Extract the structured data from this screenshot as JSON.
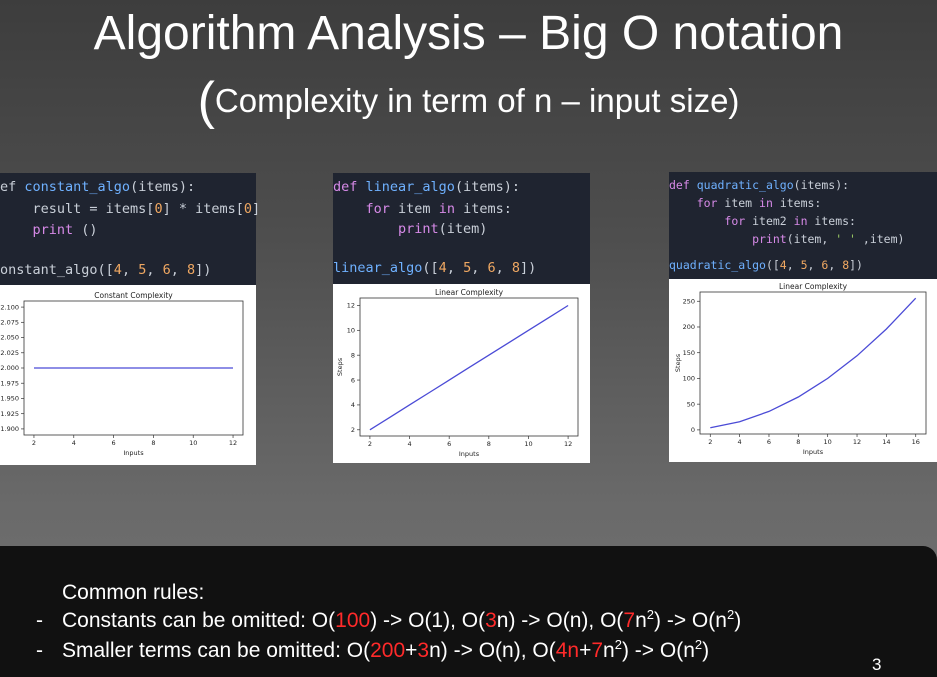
{
  "slide": {
    "title": "Algorithm Analysis – Big O notation",
    "subtitle_open": "(",
    "subtitle": "Complexity in term of n – input size)",
    "page_number": "3"
  },
  "code_blocks": [
    {
      "name": "constant",
      "lines": [
        "ef constant_algo(items):",
        "    result = items[0] * items[0]",
        "    print ()",
        "",
        "onstant_algo([4, 5, 6, 8])"
      ]
    },
    {
      "name": "linear",
      "lines": [
        "def linear_algo(items):",
        "    for item in items:",
        "        print(item)",
        "",
        "linear_algo([4, 5, 6, 8])"
      ]
    },
    {
      "name": "quadratic",
      "lines": [
        "def quadratic_algo(items):",
        "    for item in items:",
        "        for item2 in items:",
        "            print(item, ' ' ,item)",
        "",
        "quadratic_algo([4, 5, 6, 8])"
      ]
    }
  ],
  "chart_data": [
    {
      "type": "line",
      "title": "Constant Complexity",
      "xlabel": "Inputs",
      "ylabel": "",
      "x": [
        2,
        3,
        4,
        5,
        6,
        7,
        8,
        9,
        10,
        11,
        12
      ],
      "y": [
        2,
        2,
        2,
        2,
        2,
        2,
        2,
        2,
        2,
        2,
        2
      ],
      "xticks": [
        "2",
        "4",
        "6",
        "8",
        "10",
        "12"
      ],
      "yticks": [
        "1.900",
        "1.925",
        "1.950",
        "1.975",
        "2.000",
        "2.025",
        "2.050",
        "2.075",
        "2.100"
      ],
      "xlim": [
        1.5,
        12.5
      ],
      "ylim": [
        1.89,
        2.11
      ],
      "color": "#4b4bd6"
    },
    {
      "type": "line",
      "title": "Linear Complexity",
      "xlabel": "Inputs",
      "ylabel": "Steps",
      "x": [
        2,
        3,
        4,
        5,
        6,
        7,
        8,
        9,
        10,
        11,
        12
      ],
      "y": [
        2,
        3,
        4,
        5,
        6,
        7,
        8,
        9,
        10,
        11,
        12
      ],
      "xticks": [
        "2",
        "4",
        "6",
        "8",
        "10",
        "12"
      ],
      "yticks": [
        "2",
        "4",
        "6",
        "8",
        "10",
        "12"
      ],
      "xlim": [
        1.5,
        12.5
      ],
      "ylim": [
        1.5,
        12.6
      ],
      "color": "#4b4bd6"
    },
    {
      "type": "line",
      "title": "Linear Complexity",
      "xlabel": "Inputs",
      "ylabel": "Steps",
      "x": [
        2,
        4,
        6,
        8,
        10,
        12,
        14,
        16
      ],
      "y": [
        4,
        16,
        36,
        64,
        100,
        144,
        196,
        256
      ],
      "xticks": [
        "2",
        "4",
        "6",
        "8",
        "10",
        "12",
        "14",
        "16"
      ],
      "yticks": [
        "0",
        "50",
        "100",
        "150",
        "200",
        "250"
      ],
      "xlim": [
        1.3,
        16.7
      ],
      "ylim": [
        -8,
        268
      ],
      "color": "#4b4bd6"
    }
  ],
  "rules": {
    "heading": "Common rules:",
    "bullet": "-",
    "line1": [
      {
        "t": "Constants can be omitted: O("
      },
      {
        "t": "100",
        "red": true
      },
      {
        "t": ") -> O(1), O("
      },
      {
        "t": "3",
        "red": true
      },
      {
        "t": "n) -> O(n), O("
      },
      {
        "t": "7",
        "red": true
      },
      {
        "t": "n"
      },
      {
        "t": "2",
        "sup": true
      },
      {
        "t": ") -> O(n"
      },
      {
        "t": "2",
        "sup": true
      },
      {
        "t": ")"
      }
    ],
    "line2": [
      {
        "t": "Smaller terms can be omitted: O("
      },
      {
        "t": "200",
        "red": true
      },
      {
        "t": "+"
      },
      {
        "t": "3",
        "red": true
      },
      {
        "t": "n) -> O(n), O("
      },
      {
        "t": "4n",
        "red": true
      },
      {
        "t": "+"
      },
      {
        "t": "7",
        "red": true
      },
      {
        "t": "n"
      },
      {
        "t": "2",
        "sup": true
      },
      {
        "t": ") -> O(n"
      },
      {
        "t": "2",
        "sup": true
      },
      {
        "t": ")"
      }
    ]
  }
}
